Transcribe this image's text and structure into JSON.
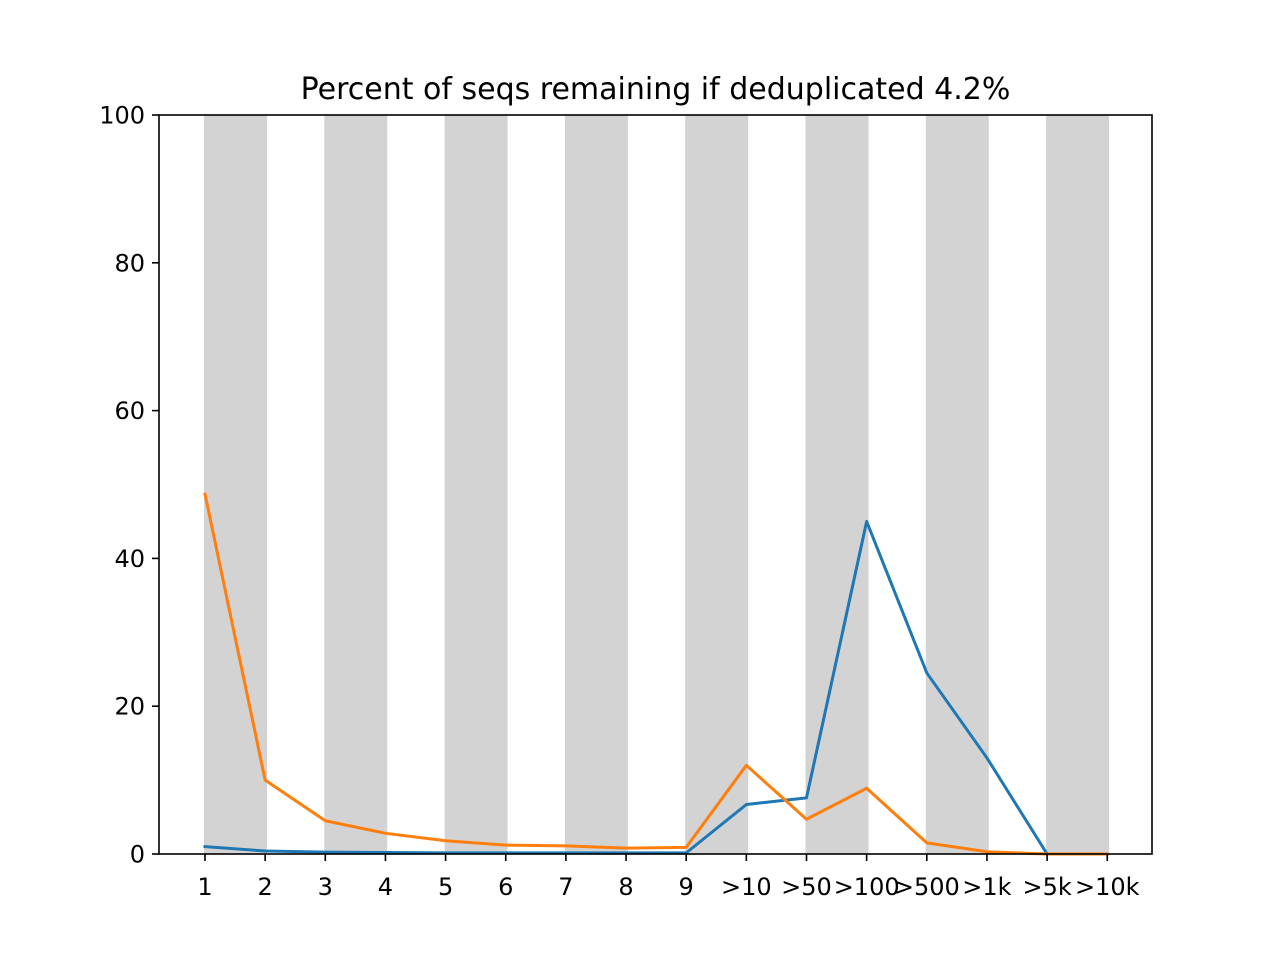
{
  "chart_data": {
    "type": "line",
    "title": "Percent of seqs remaining if deduplicated 4.2%",
    "xlabel": "",
    "ylabel": "",
    "categories": [
      "1",
      "2",
      "3",
      "4",
      "5",
      "6",
      "7",
      "8",
      "9",
      ">10",
      ">50",
      ">100",
      ">500",
      ">1k",
      ">5k",
      ">10k"
    ],
    "ylim": [
      0,
      100
    ],
    "yticks": [
      0,
      20,
      40,
      60,
      80,
      100
    ],
    "grid": false,
    "legend": "none",
    "background_bands": {
      "color": "#d3d3d3",
      "categories": [
        "1",
        "3",
        "5",
        "7",
        "9",
        ">50",
        ">500",
        ">5k"
      ]
    },
    "series": [
      {
        "color": "#1f77b4",
        "values": [
          1.0,
          0.4,
          0.25,
          0.2,
          0.15,
          0.15,
          0.15,
          0.15,
          0.15,
          6.7,
          7.6,
          45.0,
          24.5,
          13.0,
          0.0,
          0.0
        ]
      },
      {
        "color": "#ff7f0e",
        "values": [
          48.7,
          10.0,
          4.5,
          2.8,
          1.8,
          1.2,
          1.1,
          0.8,
          0.9,
          12.0,
          4.7,
          8.9,
          1.5,
          0.3,
          0.0,
          0.0
        ]
      }
    ]
  }
}
